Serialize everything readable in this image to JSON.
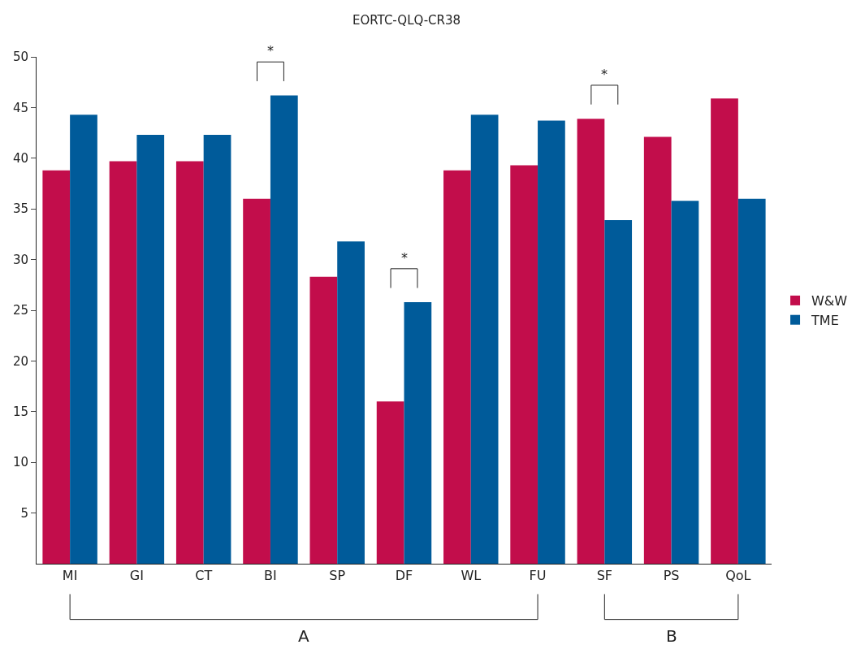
{
  "chart_data": {
    "type": "bar",
    "title": "EORTC-QLQ-CR38",
    "categories": [
      "MI",
      "GI",
      "CT",
      "BI",
      "SP",
      "DF",
      "WL",
      "FU",
      "SF",
      "PS",
      "QoL"
    ],
    "series": [
      {
        "name": "W&W",
        "color": "#c20d4b",
        "values": [
          38.8,
          39.7,
          39.7,
          36.0,
          28.3,
          16.0,
          38.8,
          39.3,
          43.9,
          42.1,
          45.9
        ]
      },
      {
        "name": "TME",
        "color": "#005b9a",
        "values": [
          44.3,
          42.3,
          42.3,
          46.2,
          31.8,
          25.8,
          44.3,
          43.7,
          33.9,
          35.8,
          36.0
        ]
      }
    ],
    "ylim": [
      0,
      50
    ],
    "yticks": [
      5,
      10,
      15,
      20,
      25,
      30,
      35,
      40,
      45,
      50
    ],
    "annotations": [
      "*",
      "*",
      "*",
      "A",
      "B"
    ],
    "legend": "right",
    "grid": false
  }
}
